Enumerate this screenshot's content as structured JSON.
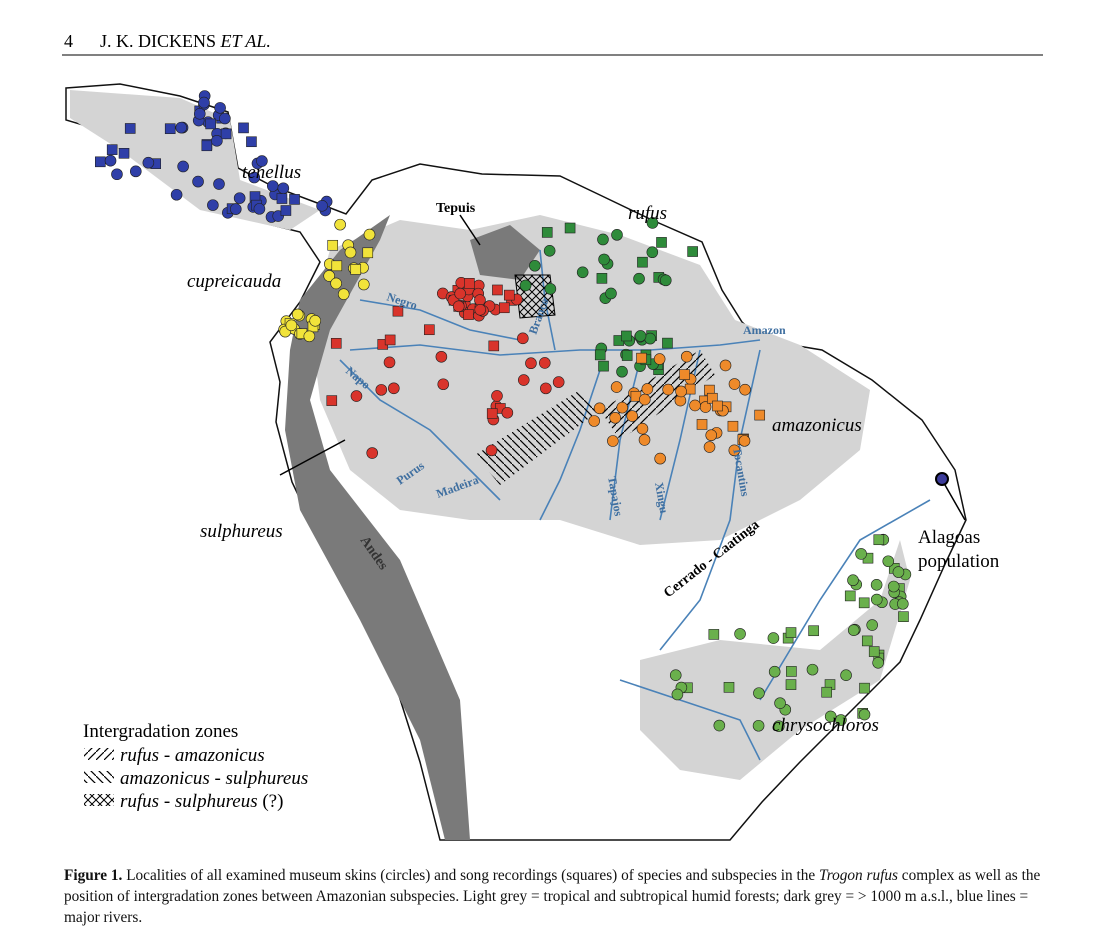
{
  "header": {
    "page": "4",
    "authors": "J. K. DICKENS",
    "authors_suffix": "ET AL."
  },
  "figure": {
    "labels": {
      "tenellus": "tenellus",
      "cupreicauda": "cupreicauda",
      "sulphureus": "sulphureus",
      "rufus": "rufus",
      "amazonicus": "amazonicus",
      "chrysochloros": "chrysochloros",
      "alagoas_1": "Alagoas",
      "alagoas_2": "population",
      "tepuis": "Tepuis",
      "negro": "Negro",
      "branco": "Branco",
      "napo": "Napo",
      "purus": "Purus",
      "madeira": "Madeira",
      "tapajos": "Tapajos",
      "xingu": "Xingu",
      "tocantins": "Tocantins",
      "amazon": "Amazon",
      "andes": "Andes",
      "cerrado": "Cerrado - Caatinga"
    },
    "legend": {
      "title": "Intergradation zones",
      "items": [
        {
          "label": "rufus - amazonicus"
        },
        {
          "label": "amazonicus - sulphureus"
        },
        {
          "label": "rufus - sulphureus",
          "note": "(?)"
        }
      ]
    }
  },
  "caption": {
    "label": "Figure 1.",
    "text_1": "Localities of all examined museum skins (circles) and song recordings (squares) of species and subspecies in the",
    "species": "Trogon rufus",
    "text_2": "complex as well as the position of intergradation zones between Amazonian subspecies. Light grey = tropical and subtropical humid forests; dark grey = > 1000 m a.s.l., blue lines = major rivers."
  }
}
